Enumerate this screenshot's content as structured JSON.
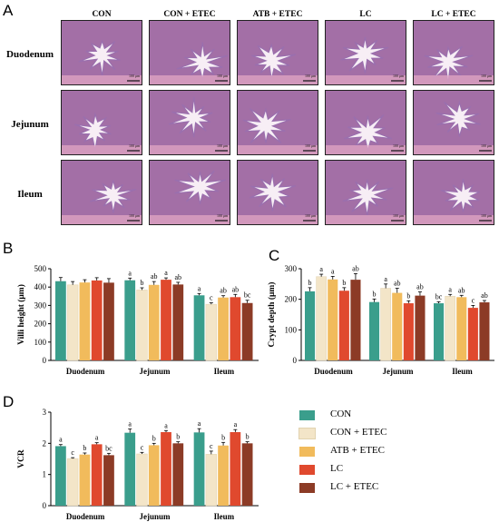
{
  "panel_letters": {
    "a": "A",
    "b": "B",
    "c": "C",
    "d": "D"
  },
  "micrograph": {
    "columns": [
      "CON",
      "CON + ETEC",
      "ATB + ETEC",
      "LC",
      "LC + ETEC"
    ],
    "rows": [
      "Duodenum",
      "Jejunum",
      "Ileum"
    ],
    "scale_bar_label": "100 μm"
  },
  "colors": {
    "CON": "#3a9e8c",
    "CON + ETEC": "#f3e5c8",
    "ATB + ETEC": "#f1bb5c",
    "LC": "#e0492e",
    "LC + ETEC": "#8c3b26",
    "tissue_pink": "#e6a9c6",
    "tissue_purple": "#6b3f8c"
  },
  "legend": [
    "CON",
    "CON + ETEC",
    "ATB + ETEC",
    "LC",
    "LC + ETEC"
  ],
  "chart_data": [
    {
      "panel": "B",
      "type": "bar",
      "categories": [
        "Duodenum",
        "Jejunum",
        "Ileum"
      ],
      "ylabel": "Villi height (μm)",
      "ylim": [
        0,
        500
      ],
      "yticks": [
        0,
        100,
        200,
        300,
        400,
        500
      ],
      "series": [
        {
          "name": "CON",
          "values": [
            432,
            437,
            355
          ],
          "errors": [
            20,
            12,
            10
          ],
          "letters": [
            "",
            "a",
            "a"
          ]
        },
        {
          "name": "CON + ETEC",
          "values": [
            412,
            384,
            306
          ],
          "errors": [
            18,
            12,
            8
          ],
          "letters": [
            "",
            "b",
            "c"
          ]
        },
        {
          "name": "ATB + ETEC",
          "values": [
            425,
            412,
            343
          ],
          "errors": [
            15,
            18,
            10
          ],
          "letters": [
            "",
            "ab",
            "ab"
          ]
        },
        {
          "name": "LC",
          "values": [
            436,
            440,
            345
          ],
          "errors": [
            15,
            10,
            15
          ],
          "letters": [
            "",
            "a",
            "ab"
          ]
        },
        {
          "name": "LC + ETEC",
          "values": [
            424,
            414,
            313
          ],
          "errors": [
            22,
            12,
            15
          ],
          "letters": [
            "",
            "ab",
            "bc"
          ]
        }
      ]
    },
    {
      "panel": "C",
      "type": "bar",
      "categories": [
        "Duodenum",
        "Jejunum",
        "Ileum"
      ],
      "ylabel": "Crypt depth (μm)",
      "ylim": [
        0,
        300
      ],
      "yticks": [
        0,
        100,
        200,
        300
      ],
      "series": [
        {
          "name": "CON",
          "values": [
            226,
            191,
            187
          ],
          "errors": [
            12,
            10,
            5
          ],
          "letters": [
            "b",
            "b",
            "bc"
          ]
        },
        {
          "name": "CON + ETEC",
          "values": [
            274,
            236,
            210
          ],
          "errors": [
            8,
            14,
            6
          ],
          "letters": [
            "a",
            "a",
            "a"
          ]
        },
        {
          "name": "ATB + ETEC",
          "values": [
            265,
            221,
            207
          ],
          "errors": [
            10,
            15,
            6
          ],
          "letters": [
            "a",
            "ab",
            "ab"
          ]
        },
        {
          "name": "LC",
          "values": [
            228,
            187,
            172
          ],
          "errors": [
            10,
            8,
            8
          ],
          "letters": [
            "b",
            "b",
            "c"
          ]
        },
        {
          "name": "LC + ETEC",
          "values": [
            264,
            212,
            190
          ],
          "errors": [
            20,
            12,
            6
          ],
          "letters": [
            "ab",
            "ab",
            "ab"
          ]
        }
      ]
    },
    {
      "panel": "D",
      "type": "bar",
      "categories": [
        "Duodenum",
        "Jejunum",
        "Ileum"
      ],
      "ylabel": "VCR",
      "ylim": [
        0,
        3
      ],
      "yticks": [
        0,
        1,
        2,
        3
      ],
      "series": [
        {
          "name": "CON",
          "values": [
            1.91,
            2.34,
            2.35
          ],
          "errors": [
            0.05,
            0.12,
            0.12
          ],
          "letters": [
            "a",
            "a",
            "a"
          ]
        },
        {
          "name": "CON + ETEC",
          "values": [
            1.51,
            1.66,
            1.65
          ],
          "errors": [
            0.03,
            0.05,
            0.1
          ],
          "letters": [
            "c",
            "c",
            "c"
          ]
        },
        {
          "name": "ATB + ETEC",
          "values": [
            1.64,
            1.94,
            1.93
          ],
          "errors": [
            0.05,
            0.06,
            0.1
          ],
          "letters": [
            "b",
            "b",
            "b"
          ]
        },
        {
          "name": "LC",
          "values": [
            1.97,
            2.36,
            2.36
          ],
          "errors": [
            0.05,
            0.05,
            0.08
          ],
          "letters": [
            "a",
            "a",
            "a"
          ]
        },
        {
          "name": "LC + ETEC",
          "values": [
            1.62,
            2.0,
            2.0
          ],
          "errors": [
            0.06,
            0.05,
            0.05
          ],
          "letters": [
            "bc",
            "b",
            "b"
          ]
        }
      ]
    }
  ]
}
